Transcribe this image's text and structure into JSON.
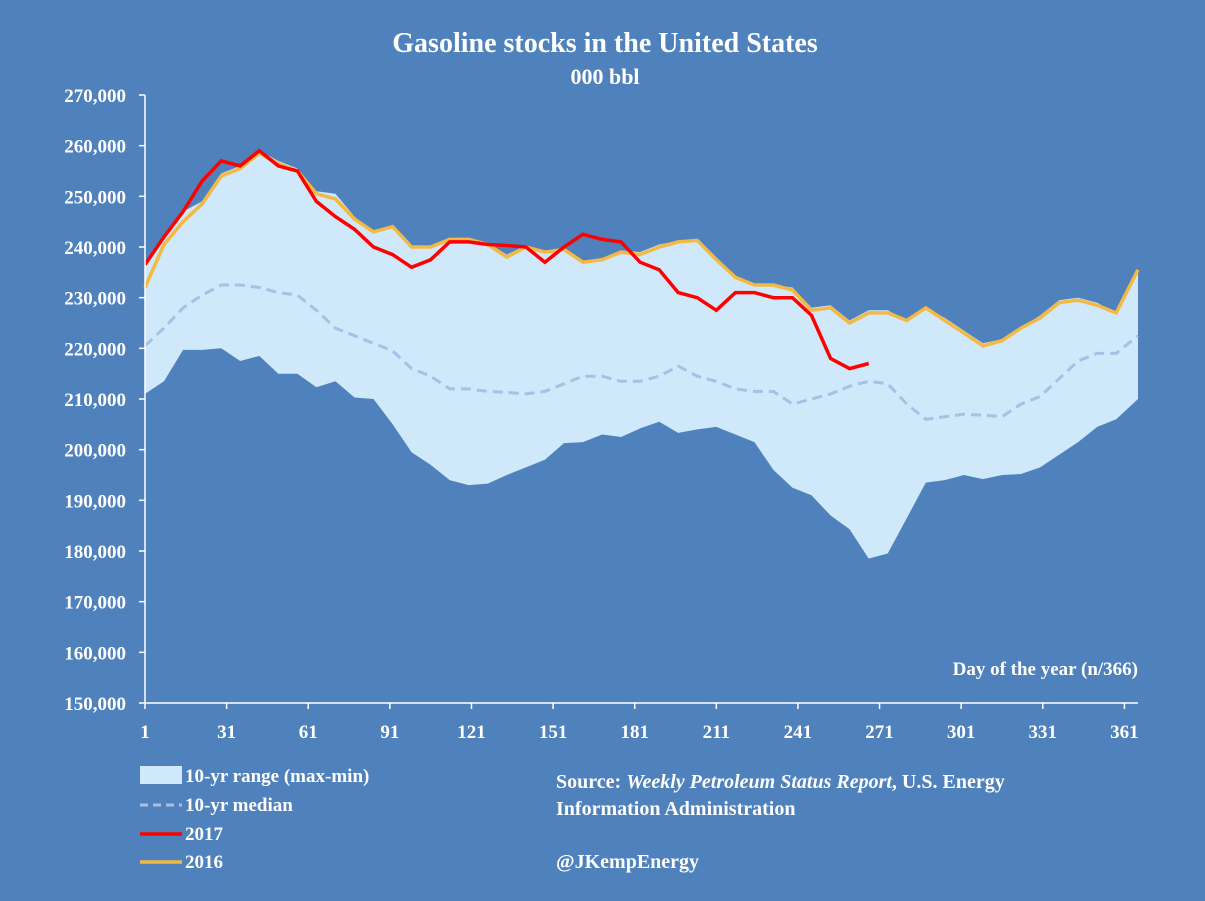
{
  "chart_data": {
    "type": "line",
    "title": "Gasoline stocks in the United States",
    "subtitle": "000 bbl",
    "xlabel": "Day of the year (n/366)",
    "ylabel": "",
    "xlim": [
      1,
      366
    ],
    "ylim": [
      150000,
      270000
    ],
    "x_ticks": [
      1,
      31,
      61,
      91,
      121,
      151,
      181,
      211,
      241,
      271,
      301,
      331,
      361
    ],
    "y_ticks": [
      150000,
      160000,
      170000,
      180000,
      190000,
      200000,
      210000,
      220000,
      230000,
      240000,
      250000,
      260000,
      270000
    ],
    "y_tick_labels": [
      "150,000",
      "160,000",
      "170,000",
      "180,000",
      "190,000",
      "200,000",
      "210,000",
      "220,000",
      "230,000",
      "240,000",
      "250,000",
      "260,000",
      "270,000"
    ],
    "x_tick_labels": [
      "1",
      "31",
      "61",
      "91",
      "121",
      "151",
      "181",
      "211",
      "241",
      "271",
      "301",
      "331",
      "361"
    ],
    "range": {
      "name": "10-yr range (max-min)",
      "x": [
        1,
        8,
        15,
        22,
        29,
        36,
        43,
        50,
        57,
        64,
        71,
        78,
        85,
        92,
        99,
        106,
        113,
        120,
        127,
        134,
        141,
        148,
        155,
        162,
        169,
        176,
        183,
        190,
        197,
        204,
        211,
        218,
        225,
        232,
        239,
        246,
        253,
        260,
        267,
        274,
        281,
        288,
        295,
        302,
        309,
        316,
        323,
        330,
        337,
        344,
        351,
        358,
        366
      ],
      "max": [
        237000,
        242000,
        247000,
        249000,
        254500,
        256000,
        259000,
        257000,
        255500,
        251000,
        250500,
        246000,
        243000,
        244000,
        240000,
        240000,
        241000,
        241800,
        240800,
        238500,
        240300,
        239000,
        239800,
        237000,
        237800,
        239300,
        239000,
        240500,
        241200,
        241500,
        238000,
        234000,
        232800,
        232500,
        232000,
        228000,
        228500,
        225500,
        227500,
        227500,
        225500,
        228000,
        226000,
        223500,
        221000,
        221800,
        224000,
        226500,
        229500,
        230000,
        229000,
        227000,
        235500
      ],
      "min": [
        211000,
        213500,
        219700,
        219700,
        220000,
        217500,
        218500,
        215000,
        215000,
        212300,
        213500,
        210300,
        210000,
        205000,
        199500,
        197000,
        194000,
        193000,
        193300,
        195000,
        196500,
        198000,
        201300,
        201500,
        203000,
        202500,
        204200,
        205500,
        203300,
        204000,
        204500,
        203000,
        201500,
        196000,
        192500,
        191000,
        187000,
        184300,
        178500,
        179500,
        186500,
        193500,
        194000,
        195000,
        194200,
        195000,
        195200,
        196500,
        199000,
        201500,
        204500,
        206000,
        210000
      ]
    },
    "series": [
      {
        "name": "10-yr median",
        "color": "#a9bfe3",
        "style": "dashed",
        "x": [
          1,
          8,
          15,
          22,
          29,
          36,
          43,
          50,
          57,
          64,
          71,
          78,
          85,
          92,
          99,
          106,
          113,
          120,
          127,
          134,
          141,
          148,
          155,
          162,
          169,
          176,
          183,
          190,
          197,
          204,
          211,
          218,
          225,
          232,
          239,
          246,
          253,
          260,
          267,
          274,
          281,
          288,
          295,
          302,
          309,
          316,
          323,
          330,
          337,
          344,
          351,
          358,
          366
        ],
        "values": [
          220500,
          224000,
          228000,
          230500,
          232500,
          232500,
          232000,
          231000,
          230500,
          227500,
          224000,
          222500,
          221000,
          219500,
          216000,
          214500,
          212000,
          212000,
          211500,
          211300,
          211000,
          211500,
          213000,
          214500,
          214500,
          213500,
          213500,
          214500,
          216500,
          214500,
          213500,
          212000,
          211500,
          211500,
          209000,
          210000,
          211000,
          212500,
          213500,
          213000,
          209000,
          206000,
          206500,
          207000,
          206800,
          206500,
          209000,
          210500,
          214000,
          217500,
          219000,
          219000,
          222500
        ]
      },
      {
        "name": "2017",
        "color": "#ff0000",
        "style": "solid",
        "x": [
          1,
          8,
          15,
          22,
          29,
          36,
          43,
          50,
          57,
          64,
          71,
          78,
          85,
          92,
          99,
          106,
          113,
          120,
          127,
          134,
          141,
          148,
          155,
          162,
          169,
          176,
          183,
          190,
          197,
          204,
          211,
          218,
          225,
          232,
          239,
          246,
          253,
          260,
          267
        ],
        "values": [
          236500,
          242000,
          247000,
          253000,
          257000,
          256000,
          259000,
          256000,
          255000,
          249000,
          246000,
          243500,
          240000,
          238500,
          236000,
          237500,
          241000,
          241000,
          240500,
          240300,
          240000,
          237000,
          240000,
          242500,
          241500,
          241000,
          237000,
          235500,
          231000,
          230000,
          227500,
          231000,
          231000,
          230000,
          230000,
          226500,
          218000,
          216000,
          217000
        ]
      },
      {
        "name": "2016",
        "color": "#f4b942",
        "style": "solid",
        "x": [
          1,
          8,
          15,
          22,
          29,
          36,
          43,
          50,
          57,
          64,
          71,
          78,
          85,
          92,
          99,
          106,
          113,
          120,
          127,
          134,
          141,
          148,
          155,
          162,
          169,
          176,
          183,
          190,
          197,
          204,
          211,
          218,
          225,
          232,
          239,
          246,
          253,
          260,
          267,
          274,
          281,
          288,
          295,
          302,
          309,
          316,
          323,
          330,
          337,
          344,
          351,
          358,
          366
        ],
        "values": [
          232000,
          240500,
          245000,
          248500,
          254000,
          255500,
          258500,
          256500,
          255000,
          250500,
          249500,
          245500,
          243000,
          244000,
          240000,
          240000,
          241500,
          241500,
          240500,
          238000,
          240000,
          239000,
          239500,
          237000,
          237500,
          239000,
          238500,
          240000,
          241000,
          241300,
          237500,
          234000,
          232500,
          232500,
          231500,
          227500,
          228000,
          225000,
          227000,
          227000,
          225500,
          228000,
          225500,
          223000,
          220500,
          221500,
          224000,
          226000,
          229000,
          229500,
          228500,
          227000,
          235500
        ]
      }
    ],
    "legend": [
      {
        "label": "10-yr range (max-min)",
        "swatch": "fill",
        "color": "#cfe9fb"
      },
      {
        "label": "10-yr median",
        "swatch": "dash",
        "color": "#a9bfe3"
      },
      {
        "label": "2017",
        "swatch": "line",
        "color": "#ff0000"
      },
      {
        "label": "2016",
        "swatch": "line",
        "color": "#f4b942"
      }
    ],
    "legend_placement": "bottom-left",
    "grid": false,
    "colors": {
      "background": "#4f81bd",
      "range_fill": "#cfe9fb",
      "axis": "#ffffff"
    }
  },
  "source": {
    "prefix": "Source: ",
    "publication": "Weekly Petroleum Status Report",
    "rest_line1": ", U.S. Energy",
    "line2": "Information Administration",
    "handle": "@JKempEnergy"
  }
}
